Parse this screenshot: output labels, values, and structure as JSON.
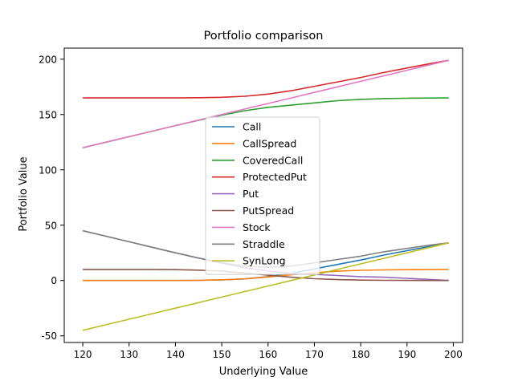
{
  "chart_data": {
    "type": "line",
    "title": "Portfolio comparison",
    "xlabel": "Underlying Value",
    "ylabel": "Portfolio Value",
    "xlim": [
      116,
      202
    ],
    "ylim": [
      -56,
      210
    ],
    "xticks": [
      120,
      130,
      140,
      150,
      160,
      170,
      180,
      190,
      200
    ],
    "yticks": [
      -50,
      0,
      50,
      100,
      150,
      200
    ],
    "grid": false,
    "legend": "center",
    "x": [
      120,
      125,
      130,
      135,
      140,
      145,
      150,
      155,
      160,
      165,
      170,
      175,
      180,
      185,
      190,
      195,
      199
    ],
    "series": [
      {
        "name": "Call",
        "color": "#1f77b4",
        "values": [
          0,
          0,
          0,
          0,
          0,
          0.2,
          0.6,
          1.5,
          3.5,
          6.5,
          10.5,
          14.5,
          18.5,
          23,
          27,
          31,
          34
        ]
      },
      {
        "name": "CallSpread",
        "color": "#ff7f0e",
        "values": [
          0,
          0,
          0,
          0,
          0,
          0.2,
          0.6,
          1.5,
          3.2,
          5.2,
          7.0,
          8.4,
          9.2,
          9.6,
          9.8,
          9.9,
          10
        ]
      },
      {
        "name": "CoveredCall",
        "color": "#2ca02c",
        "values": [
          120,
          125,
          130,
          135,
          140,
          144.8,
          149.4,
          153.5,
          156.5,
          158.5,
          160.5,
          162.5,
          163.7,
          164.4,
          164.7,
          164.9,
          165
        ]
      },
      {
        "name": "ProtectedPut",
        "color": "#d62728",
        "values": [
          165,
          165,
          165,
          165,
          165,
          165.2,
          165.6,
          166.5,
          168.5,
          171.5,
          175.5,
          179.5,
          183.5,
          188,
          192,
          196,
          199
        ]
      },
      {
        "name": "Put",
        "color": "#9467bd",
        "values": [
          45,
          40,
          35,
          30,
          25,
          20.2,
          15.6,
          11.5,
          8.5,
          6.5,
          5.5,
          4.5,
          3.5,
          3,
          2,
          1,
          0
        ]
      },
      {
        "name": "PutSpread",
        "color": "#8c564b",
        "values": [
          10,
          10,
          10,
          10,
          9.8,
          9.4,
          8.5,
          6.8,
          4.8,
          3.0,
          1.6,
          0.8,
          0.4,
          0.2,
          0.1,
          0,
          0
        ]
      },
      {
        "name": "Stock",
        "color": "#e377c2",
        "values": [
          120,
          125,
          130,
          135,
          140,
          145,
          150,
          155,
          160,
          165,
          170,
          175,
          180,
          185,
          190,
          195,
          199
        ]
      },
      {
        "name": "Straddle",
        "color": "#7f7f7f",
        "values": [
          45,
          40,
          35,
          30,
          25,
          20.4,
          16.2,
          13,
          12,
          13,
          16,
          19,
          22,
          26,
          29,
          32,
          34
        ]
      },
      {
        "name": "SynLong",
        "color": "#bcbd22",
        "values": [
          -45,
          -40,
          -35,
          -30,
          -25,
          -20,
          -15,
          -10,
          -5,
          0,
          5,
          10,
          15,
          20,
          25,
          30,
          34
        ]
      }
    ]
  }
}
